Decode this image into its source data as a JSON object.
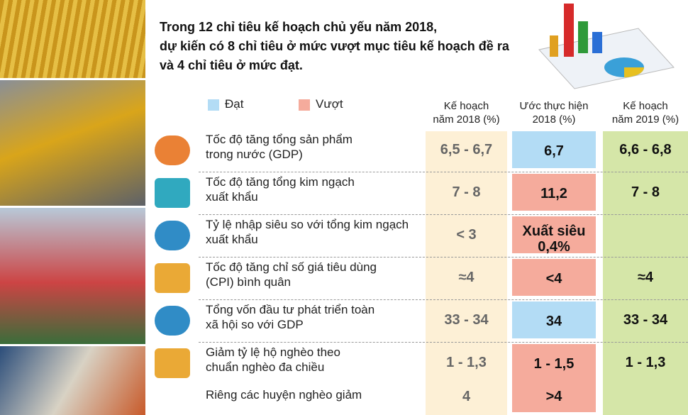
{
  "intro": {
    "lines": [
      "Trong 12 chỉ tiêu kế hoạch chủ yếu năm 2018,",
      "dự kiến có 8 chỉ tiêu ở mức vượt mục tiêu kế hoạch đề ra",
      "và 4 chỉ tiêu ở mức đạt."
    ]
  },
  "legend": [
    {
      "label": "Đạt",
      "color": "#b3dcf5"
    },
    {
      "label": "Vượt",
      "color": "#f5ab9c"
    }
  ],
  "columns": [
    {
      "lines": [
        "Kế hoạch",
        "năm 2018 (%)"
      ]
    },
    {
      "lines": [
        "Ước thực hiện",
        "2018 (%)"
      ]
    },
    {
      "lines": [
        "Kế hoạch",
        "năm 2019 (%)"
      ]
    }
  ],
  "rows": [
    {
      "label": [
        "Tốc độ tăng tổng sản phẩm",
        "trong nước (GDP)"
      ],
      "plan_2018": "6,5 - 6,7",
      "estimate_2018": [
        "6,7"
      ],
      "estimate_color": "#b3dcf5",
      "plan_2019": "6,6 - 6,8"
    },
    {
      "label": [
        "Tốc độ tăng tổng kim ngạch",
        "xuất khẩu"
      ],
      "plan_2018": "7 - 8",
      "estimate_2018": [
        "11,2"
      ],
      "estimate_color": "#f5ab9c",
      "plan_2019": "7 - 8"
    },
    {
      "label": [
        "Tỷ lệ nhập siêu so với tổng kim ngạch",
        "xuất khẩu"
      ],
      "plan_2018": "< 3",
      "estimate_2018": [
        "Xuất siêu",
        "0,4%"
      ],
      "estimate_color": "#f5ab9c"
    },
    {
      "label": [
        "Tốc độ tăng chỉ số giá tiêu dùng",
        "(CPI) bình quân"
      ],
      "plan_2018": "≈4",
      "estimate_2018": [
        "<4"
      ],
      "estimate_color": "#f5ab9c",
      "plan_2019": "≈4"
    },
    {
      "label": [
        "Tổng vốn đầu tư phát triển toàn",
        "xã hội so với GDP"
      ],
      "plan_2018": "33 - 34",
      "estimate_2018": [
        "34"
      ],
      "estimate_color": "#b3dcf5",
      "plan_2019": "33 - 34"
    },
    {
      "label": [
        "Giảm tỷ lệ hộ nghèo theo",
        "chuẩn nghèo đa chiều"
      ],
      "plan_2018": "1 - 1,3",
      "estimate_2018": [
        "1 - 1,5"
      ],
      "estimate_color": "#f5ab9c",
      "plan_2019": "1 - 1,3",
      "sub": {
        "label": "Riêng các huyện nghèo giảm",
        "plan_2018": "4",
        "estimate_2018": ">4"
      }
    }
  ]
}
